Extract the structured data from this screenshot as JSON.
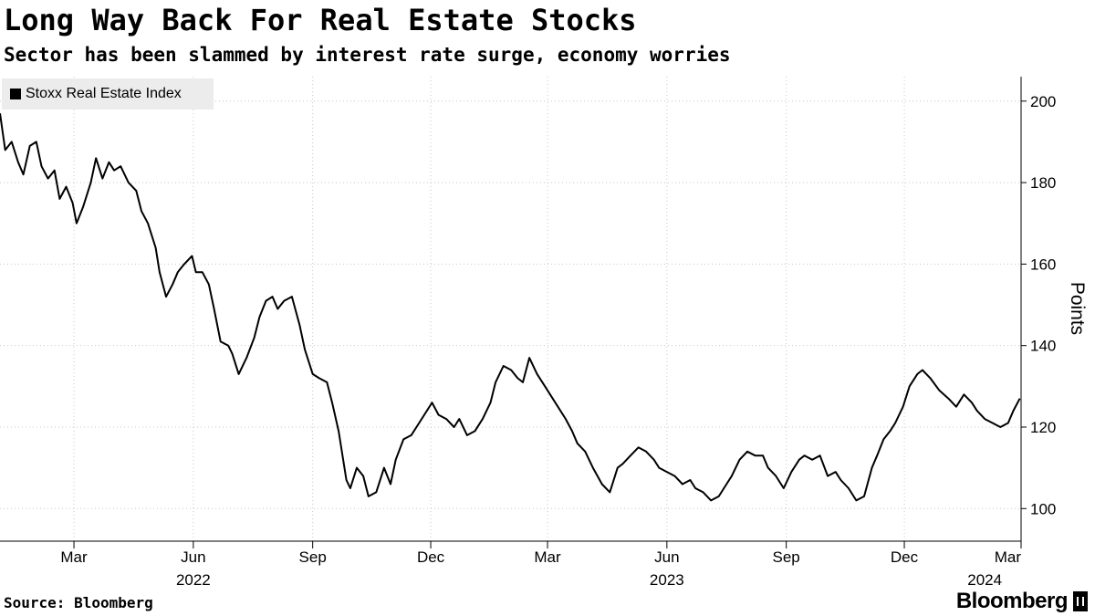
{
  "header": {
    "title": "Long Way Back For Real Estate Stocks",
    "subtitle": "Sector has been slammed by interest rate surge, economy worries"
  },
  "footer": {
    "source": "Source: Bloomberg",
    "brand": "Bloomberg"
  },
  "chart_data": {
    "type": "line",
    "title": "Long Way Back For Real Estate Stocks",
    "subtitle": "Sector has been slammed by interest rate surge, economy worries",
    "ylabel": "Points",
    "xlabel": "",
    "ylim": [
      92,
      206
    ],
    "yticks": [
      100,
      120,
      140,
      160,
      180,
      200
    ],
    "xlim": [
      "2022-01-03",
      "2024-02-29"
    ],
    "x_month_ticks": [
      {
        "date": "2022-03-01",
        "label": "Mar"
      },
      {
        "date": "2022-06-01",
        "label": "Jun"
      },
      {
        "date": "2022-09-01",
        "label": "Sep"
      },
      {
        "date": "2022-12-01",
        "label": "Dec"
      },
      {
        "date": "2023-03-01",
        "label": "Mar"
      },
      {
        "date": "2023-06-01",
        "label": "Jun"
      },
      {
        "date": "2023-09-01",
        "label": "Sep"
      },
      {
        "date": "2023-12-01",
        "label": "Dec"
      },
      {
        "date": "2024-03-01",
        "label": "Mar"
      }
    ],
    "x_year_labels": [
      {
        "date": "2022-06-01",
        "label": "2022"
      },
      {
        "date": "2023-06-01",
        "label": "2023"
      },
      {
        "date": "2024-02-01",
        "label": "2024"
      }
    ],
    "grid": true,
    "legend": "top-left",
    "series": [
      {
        "name": "Stoxx Real Estate Index",
        "color": "#000000",
        "points": [
          [
            "2022-01-03",
            197
          ],
          [
            "2022-01-07",
            188
          ],
          [
            "2022-01-12",
            190
          ],
          [
            "2022-01-17",
            185
          ],
          [
            "2022-01-21",
            182
          ],
          [
            "2022-01-26",
            189
          ],
          [
            "2022-01-31",
            190
          ],
          [
            "2022-02-04",
            184
          ],
          [
            "2022-02-09",
            181
          ],
          [
            "2022-02-14",
            183
          ],
          [
            "2022-02-18",
            176
          ],
          [
            "2022-02-23",
            179
          ],
          [
            "2022-02-28",
            175
          ],
          [
            "2022-03-03",
            170
          ],
          [
            "2022-03-08",
            174
          ],
          [
            "2022-03-14",
            180
          ],
          [
            "2022-03-18",
            186
          ],
          [
            "2022-03-23",
            181
          ],
          [
            "2022-03-28",
            185
          ],
          [
            "2022-04-01",
            183
          ],
          [
            "2022-04-06",
            184
          ],
          [
            "2022-04-12",
            180
          ],
          [
            "2022-04-18",
            178
          ],
          [
            "2022-04-22",
            173
          ],
          [
            "2022-04-27",
            170
          ],
          [
            "2022-05-03",
            164
          ],
          [
            "2022-05-06",
            158
          ],
          [
            "2022-05-11",
            152
          ],
          [
            "2022-05-16",
            155
          ],
          [
            "2022-05-20",
            158
          ],
          [
            "2022-05-25",
            160
          ],
          [
            "2022-05-31",
            162
          ],
          [
            "2022-06-03",
            158
          ],
          [
            "2022-06-08",
            158
          ],
          [
            "2022-06-13",
            155
          ],
          [
            "2022-06-17",
            149
          ],
          [
            "2022-06-22",
            141
          ],
          [
            "2022-06-28",
            140
          ],
          [
            "2022-07-01",
            138
          ],
          [
            "2022-07-06",
            133
          ],
          [
            "2022-07-12",
            137
          ],
          [
            "2022-07-18",
            142
          ],
          [
            "2022-07-22",
            147
          ],
          [
            "2022-07-27",
            151
          ],
          [
            "2022-08-01",
            152
          ],
          [
            "2022-08-05",
            149
          ],
          [
            "2022-08-10",
            151
          ],
          [
            "2022-08-16",
            152
          ],
          [
            "2022-08-22",
            145
          ],
          [
            "2022-08-26",
            139
          ],
          [
            "2022-09-01",
            133
          ],
          [
            "2022-09-06",
            132
          ],
          [
            "2022-09-12",
            131
          ],
          [
            "2022-09-16",
            126
          ],
          [
            "2022-09-21",
            119
          ],
          [
            "2022-09-27",
            107
          ],
          [
            "2022-09-30",
            105
          ],
          [
            "2022-10-05",
            110
          ],
          [
            "2022-10-10",
            108
          ],
          [
            "2022-10-14",
            103
          ],
          [
            "2022-10-20",
            104
          ],
          [
            "2022-10-26",
            110
          ],
          [
            "2022-10-31",
            106
          ],
          [
            "2022-11-04",
            112
          ],
          [
            "2022-11-10",
            117
          ],
          [
            "2022-11-16",
            118
          ],
          [
            "2022-11-22",
            121
          ],
          [
            "2022-11-28",
            124
          ],
          [
            "2022-12-02",
            126
          ],
          [
            "2022-12-07",
            123
          ],
          [
            "2022-12-13",
            122
          ],
          [
            "2022-12-19",
            120
          ],
          [
            "2022-12-23",
            122
          ],
          [
            "2022-12-29",
            118
          ],
          [
            "2023-01-04",
            119
          ],
          [
            "2023-01-10",
            122
          ],
          [
            "2023-01-16",
            126
          ],
          [
            "2023-01-20",
            131
          ],
          [
            "2023-01-26",
            135
          ],
          [
            "2023-02-01",
            134
          ],
          [
            "2023-02-06",
            132
          ],
          [
            "2023-02-10",
            131
          ],
          [
            "2023-02-15",
            137
          ],
          [
            "2023-02-21",
            133
          ],
          [
            "2023-02-27",
            130
          ],
          [
            "2023-03-03",
            128
          ],
          [
            "2023-03-09",
            125
          ],
          [
            "2023-03-15",
            122
          ],
          [
            "2023-03-20",
            119
          ],
          [
            "2023-03-24",
            116
          ],
          [
            "2023-03-30",
            114
          ],
          [
            "2023-04-05",
            110
          ],
          [
            "2023-04-12",
            106
          ],
          [
            "2023-04-18",
            104
          ],
          [
            "2023-04-24",
            110
          ],
          [
            "2023-04-28",
            111
          ],
          [
            "2023-05-04",
            113
          ],
          [
            "2023-05-10",
            115
          ],
          [
            "2023-05-16",
            114
          ],
          [
            "2023-05-22",
            112
          ],
          [
            "2023-05-26",
            110
          ],
          [
            "2023-06-01",
            109
          ],
          [
            "2023-06-07",
            108
          ],
          [
            "2023-06-13",
            106
          ],
          [
            "2023-06-19",
            107
          ],
          [
            "2023-06-23",
            105
          ],
          [
            "2023-06-29",
            104
          ],
          [
            "2023-07-05",
            102
          ],
          [
            "2023-07-11",
            103
          ],
          [
            "2023-07-17",
            106
          ],
          [
            "2023-07-21",
            108
          ],
          [
            "2023-07-27",
            112
          ],
          [
            "2023-08-02",
            114
          ],
          [
            "2023-08-08",
            113
          ],
          [
            "2023-08-14",
            113
          ],
          [
            "2023-08-18",
            110
          ],
          [
            "2023-08-24",
            108
          ],
          [
            "2023-08-30",
            105
          ],
          [
            "2023-09-05",
            109
          ],
          [
            "2023-09-11",
            112
          ],
          [
            "2023-09-15",
            113
          ],
          [
            "2023-09-21",
            112
          ],
          [
            "2023-09-27",
            113
          ],
          [
            "2023-10-03",
            108
          ],
          [
            "2023-10-09",
            109
          ],
          [
            "2023-10-13",
            107
          ],
          [
            "2023-10-19",
            105
          ],
          [
            "2023-10-25",
            102
          ],
          [
            "2023-10-31",
            103
          ],
          [
            "2023-11-06",
            110
          ],
          [
            "2023-11-10",
            113
          ],
          [
            "2023-11-15",
            117
          ],
          [
            "2023-11-20",
            119
          ],
          [
            "2023-11-24",
            121
          ],
          [
            "2023-11-30",
            125
          ],
          [
            "2023-12-05",
            130
          ],
          [
            "2023-12-11",
            133
          ],
          [
            "2023-12-15",
            134
          ],
          [
            "2023-12-21",
            132
          ],
          [
            "2023-12-28",
            129
          ],
          [
            "2024-01-04",
            127
          ],
          [
            "2024-01-10",
            125
          ],
          [
            "2024-01-16",
            128
          ],
          [
            "2024-01-22",
            126
          ],
          [
            "2024-01-26",
            124
          ],
          [
            "2024-02-01",
            122
          ],
          [
            "2024-02-07",
            121
          ],
          [
            "2024-02-13",
            120
          ],
          [
            "2024-02-19",
            121
          ],
          [
            "2024-02-23",
            124
          ],
          [
            "2024-02-28",
            127
          ]
        ]
      }
    ]
  }
}
